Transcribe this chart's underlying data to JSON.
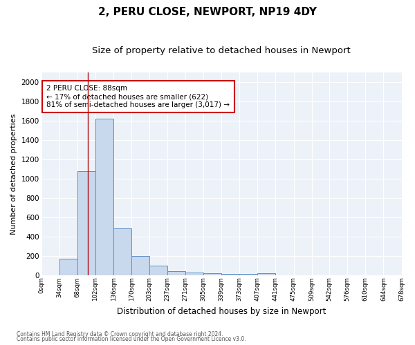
{
  "title": "2, PERU CLOSE, NEWPORT, NP19 4DY",
  "subtitle": "Size of property relative to detached houses in Newport",
  "xlabel": "Distribution of detached houses by size in Newport",
  "ylabel": "Number of detached properties",
  "footnote1": "Contains HM Land Registry data © Crown copyright and database right 2024.",
  "footnote2": "Contains public sector information licensed under the Open Government Licence v3.0.",
  "annotation_line1": "2 PERU CLOSE: 88sqm",
  "annotation_line2": "← 17% of detached houses are smaller (622)",
  "annotation_line3": "81% of semi-detached houses are larger (3,017) →",
  "bar_edges": [
    0,
    34,
    68,
    102,
    136,
    170,
    203,
    237,
    271,
    305,
    339,
    373,
    407,
    441,
    475,
    509,
    542,
    576,
    610,
    644,
    678
  ],
  "bar_heights": [
    0,
    165,
    1080,
    1620,
    480,
    200,
    100,
    40,
    25,
    15,
    12,
    12,
    20,
    0,
    0,
    0,
    0,
    0,
    0,
    0
  ],
  "bar_facecolor": "#c8d8ed",
  "bar_edgecolor": "#5b8fc9",
  "vline_x": 88,
  "vline_color": "#aa1111",
  "ylim": [
    0,
    2100
  ],
  "yticks": [
    0,
    200,
    400,
    600,
    800,
    1000,
    1200,
    1400,
    1600,
    1800,
    2000
  ],
  "bg_color": "#edf2f9",
  "grid_color": "#ffffff",
  "annotation_box_color": "#cc0000",
  "fig_bg": "#ffffff",
  "title_fontsize": 11,
  "subtitle_fontsize": 9.5
}
